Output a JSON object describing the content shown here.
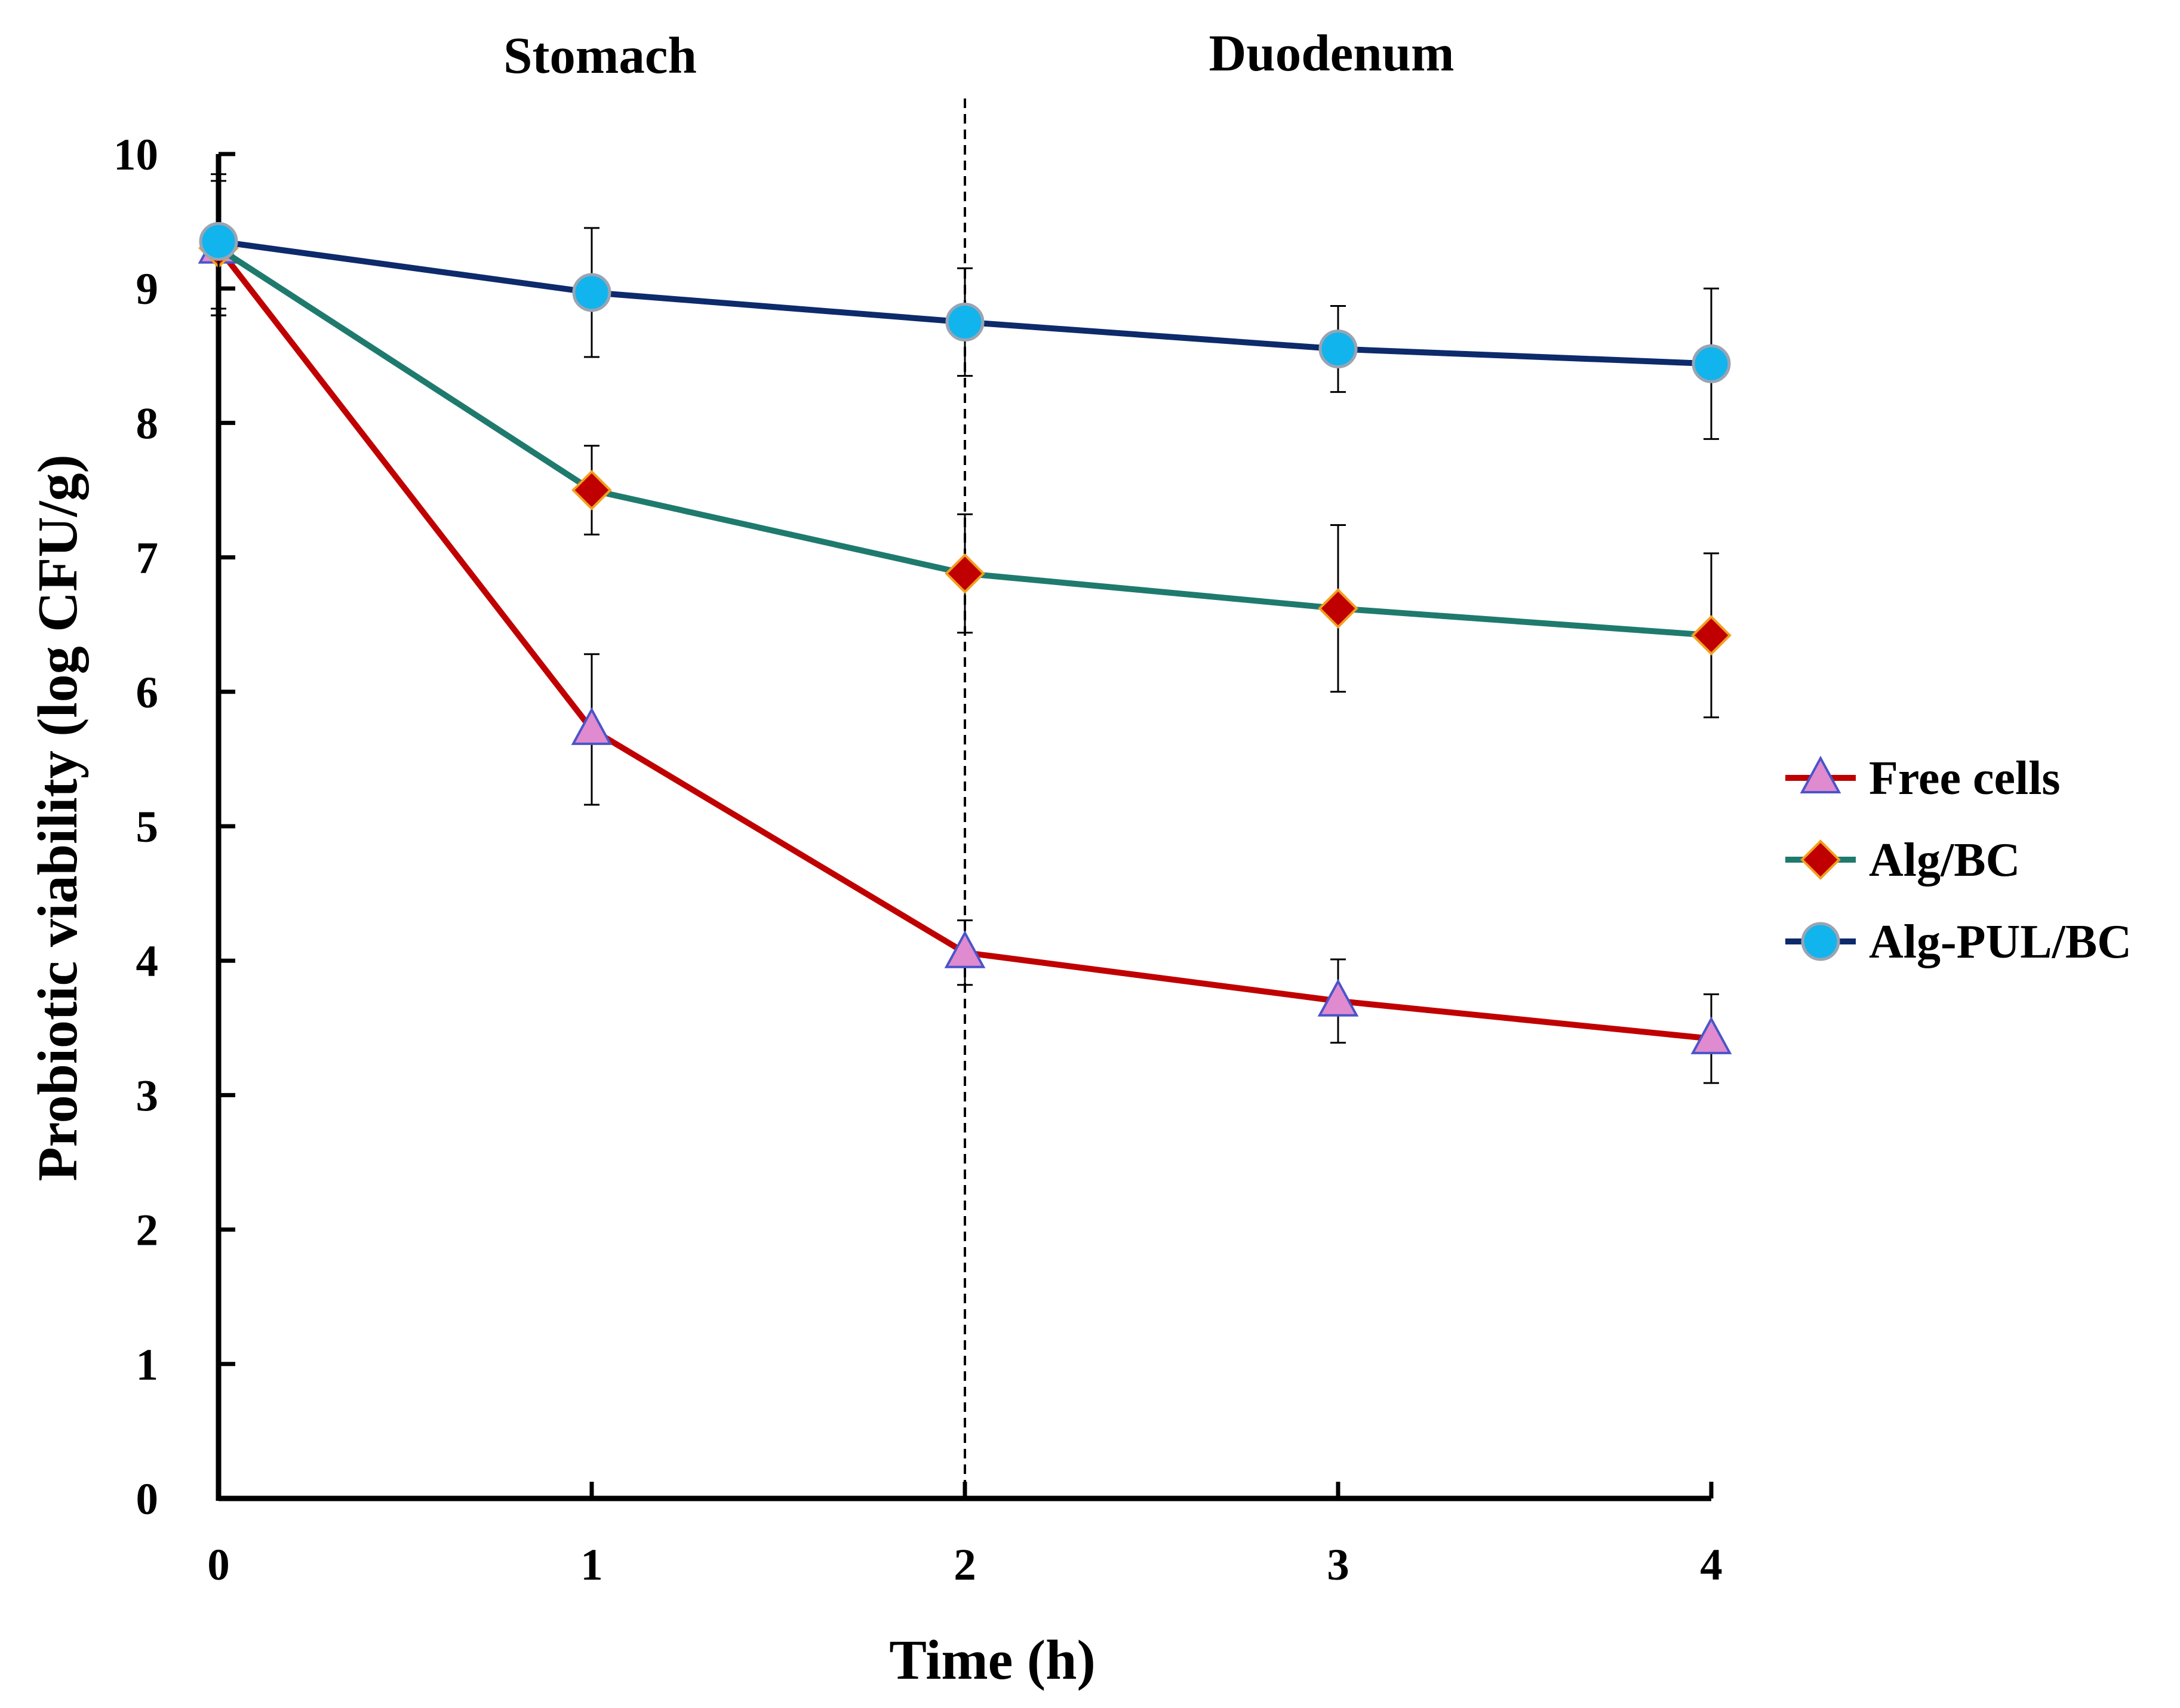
{
  "chart_data": {
    "type": "line",
    "regions": [
      "Stomach",
      "Duodenum"
    ],
    "xlabel": "Time (h)",
    "ylabel": "Probiotic viability (log CFU/g)",
    "x": [
      0,
      1,
      2,
      3,
      4
    ],
    "xticks": [
      "0",
      "1",
      "2",
      "3",
      "4"
    ],
    "yticks": [
      "0",
      "1",
      "2",
      "3",
      "4",
      "5",
      "6",
      "7",
      "8",
      "9",
      "10"
    ],
    "xlim": [
      0,
      4
    ],
    "ylim": [
      0,
      10
    ],
    "divider_x": 2,
    "series": [
      {
        "name": "Free cells",
        "values": [
          9.3,
          5.72,
          4.06,
          3.7,
          3.42
        ],
        "errors": [
          0.5,
          0.56,
          0.24,
          0.31,
          0.33
        ],
        "line_color": "#C00000",
        "marker": "triangle",
        "marker_fill": "#E08AD0",
        "marker_edge": "#4A55C8"
      },
      {
        "name": "Alg/BC",
        "values": [
          9.3,
          7.5,
          6.88,
          6.62,
          6.42
        ],
        "errors": [
          0.5,
          0.33,
          0.44,
          0.62,
          0.61
        ],
        "line_color": "#1F7A6E",
        "marker": "diamond",
        "marker_fill": "#C00000",
        "marker_edge": "#F2A020"
      },
      {
        "name": "Alg-PUL/BC",
        "values": [
          9.35,
          8.97,
          8.75,
          8.55,
          8.44
        ],
        "errors": [
          0.5,
          0.48,
          0.4,
          0.32,
          0.56
        ],
        "line_color": "#0D2A6B",
        "marker": "circle",
        "marker_fill": "#12B4EE",
        "marker_edge": "#9AA4B2"
      }
    ]
  }
}
